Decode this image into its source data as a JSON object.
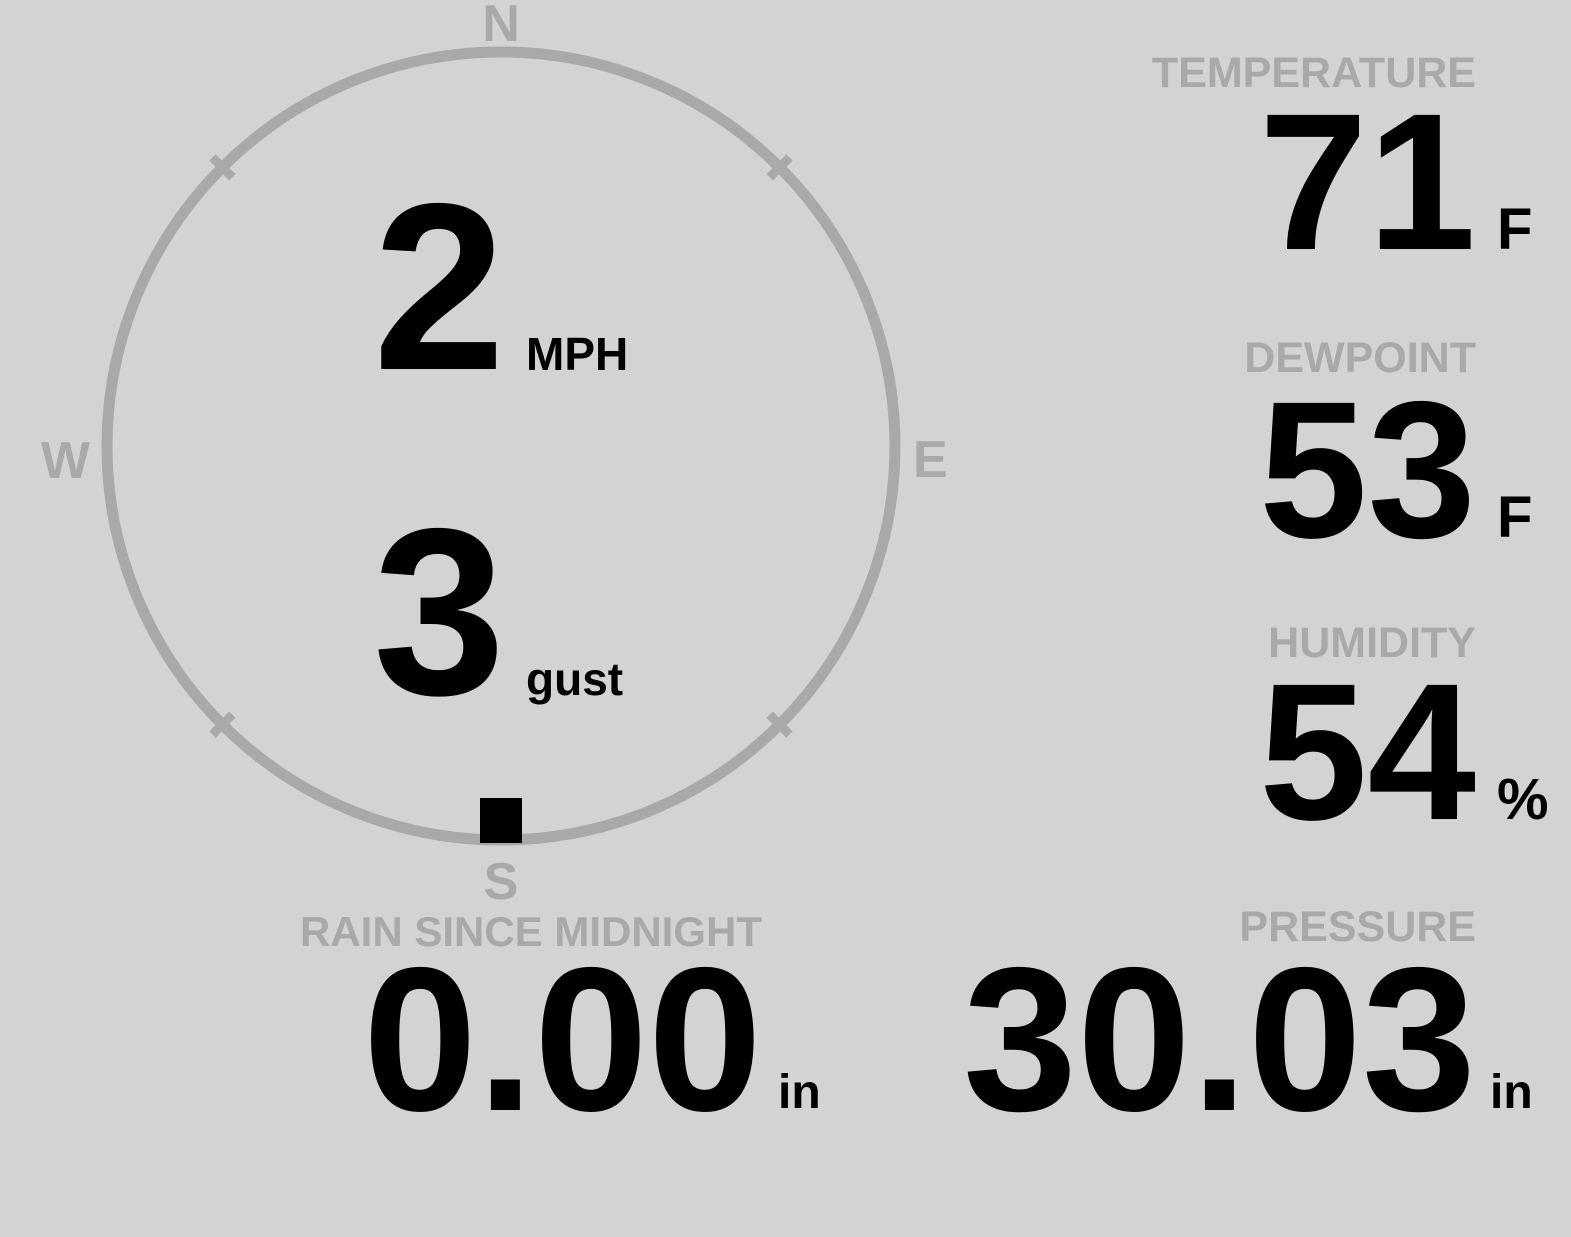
{
  "theme": {
    "background": "#d3d3d3",
    "muted_gray": "#a9a9a9",
    "foreground": "#000000"
  },
  "wind": {
    "speed": "2",
    "speed_unit": "MPH",
    "gust": "3",
    "gust_unit": "gust",
    "direction_deg": 180,
    "compass": {
      "north": "N",
      "east": "E",
      "south": "S",
      "west": "W"
    }
  },
  "metrics": {
    "temperature": {
      "label": "TEMPERATURE",
      "value": "71",
      "unit": "F"
    },
    "dewpoint": {
      "label": "DEWPOINT",
      "value": "53",
      "unit": "F"
    },
    "humidity": {
      "label": "HUMIDITY",
      "value": "54",
      "unit": "%"
    },
    "rain": {
      "label": "RAIN SINCE MIDNIGHT",
      "value": "0.00",
      "unit": "in"
    },
    "pressure": {
      "label": "PRESSURE",
      "value": "30.03",
      "unit": "in"
    }
  }
}
